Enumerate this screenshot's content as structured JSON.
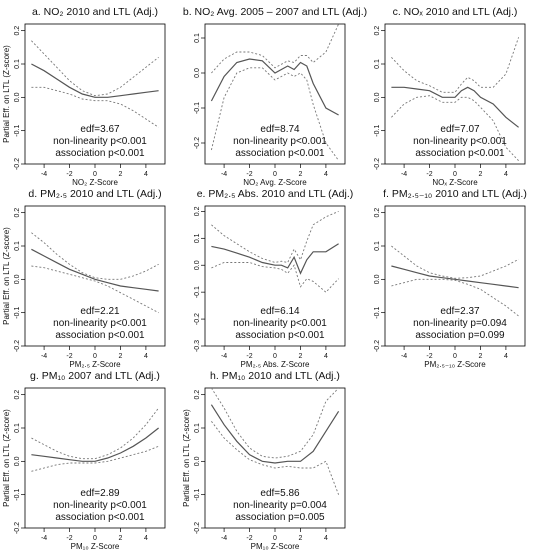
{
  "chart_data": [
    {
      "type": "line",
      "title": "a. NO₂ 2010 and LTL (Adj.)",
      "xlabel": "NO₂ Z-Score",
      "ylabel": "Partial Eff. on LTL (Z-score)",
      "xlim": [
        -5.5,
        5.5
      ],
      "ylim": [
        -0.2,
        0.22
      ],
      "xticks": [
        -4,
        -2,
        0,
        2,
        4
      ],
      "yticks": [
        -0.2,
        -0.1,
        0.0,
        0.1,
        0.2
      ],
      "stats": [
        "edf=3.67",
        "non-linearity p<0.001",
        "association p<0.001"
      ],
      "series": [
        {
          "role": "estimate",
          "x": [
            -5,
            -4,
            -3,
            -2,
            -1,
            0,
            1,
            2,
            3,
            4,
            5
          ],
          "y": [
            0.1,
            0.08,
            0.055,
            0.03,
            0.01,
            0.0,
            0.0,
            0.005,
            0.01,
            0.015,
            0.02
          ]
        },
        {
          "role": "upper",
          "x": [
            -5,
            -4,
            -3,
            -2,
            -1,
            0,
            1,
            2,
            3,
            4,
            5
          ],
          "y": [
            0.17,
            0.13,
            0.09,
            0.05,
            0.02,
            0.005,
            0.01,
            0.03,
            0.06,
            0.09,
            0.12
          ]
        },
        {
          "role": "lower",
          "x": [
            -5,
            -4,
            -3,
            -2,
            -1,
            0,
            1,
            2,
            3,
            4,
            5
          ],
          "y": [
            0.03,
            0.03,
            0.02,
            0.01,
            -0.005,
            -0.01,
            -0.01,
            -0.02,
            -0.04,
            -0.065,
            -0.09
          ]
        }
      ]
    },
    {
      "type": "line",
      "title": "b. NO₂ Avg. 2005 – 2007 and LTL (Adj.)",
      "xlabel": "NO₂ Avg. Z-Score",
      "ylabel": "",
      "xlim": [
        -5.5,
        5.5
      ],
      "ylim": [
        -0.26,
        0.14
      ],
      "xticks": [
        -4,
        -2,
        0,
        2,
        4
      ],
      "yticks": [
        -0.2,
        -0.1,
        0.0,
        0.1
      ],
      "stats": [
        "edf=8.74",
        "non-linearity p<0.001",
        "association p<0.001"
      ],
      "series": [
        {
          "role": "estimate",
          "x": [
            -5,
            -4,
            -3,
            -2,
            -1,
            0,
            1,
            1.5,
            2,
            2.5,
            3,
            4,
            5
          ],
          "y": [
            -0.08,
            -0.01,
            0.03,
            0.04,
            0.035,
            0.0,
            0.02,
            0.01,
            0.03,
            0.02,
            -0.03,
            -0.1,
            -0.12
          ]
        },
        {
          "role": "upper",
          "x": [
            -5,
            -4,
            -3,
            -2,
            -1,
            0,
            1,
            1.5,
            2,
            2.5,
            3,
            4,
            5
          ],
          "y": [
            0.0,
            0.04,
            0.06,
            0.06,
            0.05,
            0.015,
            0.035,
            0.03,
            0.05,
            0.05,
            0.03,
            0.06,
            0.14
          ]
        },
        {
          "role": "lower",
          "x": [
            -5,
            -4,
            -3,
            -2,
            -1,
            0,
            1,
            1.5,
            2,
            2.5,
            3,
            4,
            5
          ],
          "y": [
            -0.22,
            -0.07,
            0.0,
            0.015,
            0.015,
            -0.02,
            0.0,
            -0.01,
            0.0,
            -0.02,
            -0.09,
            -0.2,
            -0.25
          ]
        }
      ]
    },
    {
      "type": "line",
      "title": "c. NOₓ 2010 and LTL (Adj.)",
      "xlabel": "NOₓ Z-Score",
      "ylabel": "",
      "xlim": [
        -5.5,
        5.5
      ],
      "ylim": [
        -0.2,
        0.22
      ],
      "xticks": [
        -4,
        -2,
        0,
        2,
        4
      ],
      "yticks": [
        -0.2,
        -0.1,
        0.0,
        0.1,
        0.2
      ],
      "stats": [
        "edf=7.07",
        "non-linearity p<0.001",
        "association p<0.001"
      ],
      "series": [
        {
          "role": "estimate",
          "x": [
            -5,
            -4,
            -3,
            -2,
            -1,
            0,
            0.5,
            1,
            1.5,
            2,
            3,
            4,
            5
          ],
          "y": [
            0.03,
            0.03,
            0.025,
            0.02,
            0.0,
            0.0,
            0.02,
            0.03,
            0.02,
            0.0,
            -0.02,
            -0.06,
            -0.09
          ]
        },
        {
          "role": "upper",
          "x": [
            -5,
            -4,
            -3,
            -2,
            -1,
            0,
            0.5,
            1,
            1.5,
            2,
            3,
            4,
            5
          ],
          "y": [
            0.12,
            0.08,
            0.05,
            0.035,
            0.015,
            0.015,
            0.04,
            0.06,
            0.05,
            0.03,
            0.03,
            0.07,
            0.18
          ]
        },
        {
          "role": "lower",
          "x": [
            -5,
            -4,
            -3,
            -2,
            -1,
            0,
            0.5,
            1,
            1.5,
            2,
            3,
            4,
            5
          ],
          "y": [
            -0.06,
            -0.02,
            0.0,
            0.005,
            -0.015,
            -0.015,
            0.0,
            0.0,
            -0.01,
            -0.03,
            -0.07,
            -0.15,
            -0.19
          ]
        }
      ]
    },
    {
      "type": "line",
      "title": "d. PM₂.₅ 2010 and LTL (Adj.)",
      "xlabel": "PM₂.₅ Z-Score",
      "ylabel": "Partial Eff. on LTL (Z-score)",
      "xlim": [
        -5.5,
        5.5
      ],
      "ylim": [
        -0.2,
        0.22
      ],
      "xticks": [
        -4,
        -2,
        0,
        2,
        4
      ],
      "yticks": [
        -0.2,
        -0.1,
        0.0,
        0.1,
        0.2
      ],
      "stats": [
        "edf=2.21",
        "non-linearity p<0.001",
        "association p<0.001"
      ],
      "series": [
        {
          "role": "estimate",
          "x": [
            -5,
            -4,
            -3,
            -2,
            -1,
            0,
            1,
            2,
            3,
            4,
            5
          ],
          "y": [
            0.09,
            0.07,
            0.05,
            0.03,
            0.015,
            0.0,
            -0.01,
            -0.02,
            -0.025,
            -0.03,
            -0.035
          ]
        },
        {
          "role": "upper",
          "x": [
            -5,
            -4,
            -3,
            -2,
            -1,
            0,
            1,
            2,
            3,
            4,
            5
          ],
          "y": [
            0.14,
            0.11,
            0.075,
            0.045,
            0.02,
            0.005,
            0.0,
            0.0,
            0.01,
            0.025,
            0.045
          ]
        },
        {
          "role": "lower",
          "x": [
            -5,
            -4,
            -3,
            -2,
            -1,
            0,
            1,
            2,
            3,
            4,
            5
          ],
          "y": [
            0.04,
            0.035,
            0.025,
            0.015,
            0.005,
            -0.005,
            -0.02,
            -0.04,
            -0.06,
            -0.08,
            -0.1
          ]
        }
      ]
    },
    {
      "type": "line",
      "title": "e. PM₂.₅ Abs. 2010 and LTL (Adj.)",
      "xlabel": "PM₂.₅ Abs. Z-Score",
      "ylabel": "",
      "xlim": [
        -5.5,
        5.5
      ],
      "ylim": [
        -0.3,
        0.22
      ],
      "xticks": [
        -4,
        -2,
        0,
        2,
        4
      ],
      "yticks": [
        -0.3,
        -0.2,
        -0.1,
        0.0,
        0.1,
        0.2
      ],
      "stats": [
        "edf=6.14",
        "non-linearity p<0.001",
        "association p<0.001"
      ],
      "series": [
        {
          "role": "estimate",
          "x": [
            -5,
            -4,
            -3,
            -2,
            -1,
            0,
            0.5,
            1,
            1.5,
            2,
            2.5,
            3,
            4,
            5
          ],
          "y": [
            0.07,
            0.06,
            0.045,
            0.03,
            0.01,
            0.0,
            0.0,
            -0.01,
            0.03,
            -0.03,
            0.02,
            0.05,
            0.05,
            0.08
          ]
        },
        {
          "role": "upper",
          "x": [
            -5,
            -4,
            -3,
            -2,
            -1,
            0,
            0.5,
            1,
            1.5,
            2,
            2.5,
            3,
            4,
            5
          ],
          "y": [
            0.15,
            0.11,
            0.08,
            0.05,
            0.025,
            0.01,
            0.015,
            0.01,
            0.06,
            0.02,
            0.09,
            0.15,
            0.18,
            0.2
          ]
        },
        {
          "role": "lower",
          "x": [
            -5,
            -4,
            -3,
            -2,
            -1,
            0,
            0.5,
            1,
            1.5,
            2,
            2.5,
            3,
            4,
            5
          ],
          "y": [
            -0.01,
            0.01,
            0.01,
            0.01,
            -0.005,
            -0.01,
            -0.015,
            -0.03,
            0.0,
            -0.08,
            -0.05,
            -0.06,
            -0.1,
            -0.05
          ]
        }
      ]
    },
    {
      "type": "line",
      "title": "f. PM₂.₅₋₁₀ 2010 and LTL (Adj.)",
      "xlabel": "PM₂.₅₋₁₀ Z-Score",
      "ylabel": "",
      "xlim": [
        -5.5,
        5.5
      ],
      "ylim": [
        -0.2,
        0.22
      ],
      "xticks": [
        -4,
        -2,
        0,
        2,
        4
      ],
      "yticks": [
        -0.2,
        -0.1,
        0.0,
        0.1,
        0.2
      ],
      "stats": [
        "edf=2.37",
        "non-linearity p=0.094",
        "association p=0.099"
      ],
      "series": [
        {
          "role": "estimate",
          "x": [
            -5,
            -4,
            -3,
            -2,
            -1,
            0,
            1,
            2,
            3,
            4,
            5
          ],
          "y": [
            0.04,
            0.03,
            0.02,
            0.01,
            0.005,
            0.0,
            -0.005,
            -0.01,
            -0.015,
            -0.02,
            -0.025
          ]
        },
        {
          "role": "upper",
          "x": [
            -5,
            -4,
            -3,
            -2,
            -1,
            0,
            1,
            2,
            3,
            4,
            5
          ],
          "y": [
            0.1,
            0.07,
            0.04,
            0.02,
            0.01,
            0.003,
            0.005,
            0.01,
            0.025,
            0.04,
            0.06
          ]
        },
        {
          "role": "lower",
          "x": [
            -5,
            -4,
            -3,
            -2,
            -1,
            0,
            1,
            2,
            3,
            4,
            5
          ],
          "y": [
            -0.02,
            -0.01,
            0.0,
            0.0,
            0.0,
            -0.003,
            -0.015,
            -0.03,
            -0.055,
            -0.08,
            -0.11
          ]
        }
      ]
    },
    {
      "type": "line",
      "title": "g. PM₁₀ 2007 and LTL (Adj.)",
      "xlabel": "PM₁₀ Z-Score",
      "ylabel": "Partial Eff. on LTL (Z-score)",
      "xlim": [
        -5.5,
        5.5
      ],
      "ylim": [
        -0.2,
        0.22
      ],
      "xticks": [
        -4,
        -2,
        0,
        2,
        4
      ],
      "yticks": [
        -0.2,
        -0.1,
        0.0,
        0.1,
        0.2
      ],
      "stats": [
        "edf=2.89",
        "non-linearity p<0.001",
        "association p<0.001"
      ],
      "series": [
        {
          "role": "estimate",
          "x": [
            -5,
            -4,
            -3,
            -2,
            -1,
            0,
            1,
            2,
            3,
            4,
            5
          ],
          "y": [
            0.02,
            0.015,
            0.01,
            0.005,
            0.0,
            0.0,
            0.01,
            0.025,
            0.045,
            0.07,
            0.1
          ]
        },
        {
          "role": "upper",
          "x": [
            -5,
            -4,
            -3,
            -2,
            -1,
            0,
            1,
            2,
            3,
            4,
            5
          ],
          "y": [
            0.07,
            0.05,
            0.03,
            0.015,
            0.008,
            0.008,
            0.02,
            0.04,
            0.07,
            0.11,
            0.16
          ]
        },
        {
          "role": "lower",
          "x": [
            -5,
            -4,
            -3,
            -2,
            -1,
            0,
            1,
            2,
            3,
            4,
            5
          ],
          "y": [
            -0.03,
            -0.02,
            -0.01,
            -0.005,
            -0.005,
            -0.005,
            0.0,
            0.01,
            0.02,
            0.03,
            0.045
          ]
        }
      ]
    },
    {
      "type": "line",
      "title": "h. PM₁₀ 2010 and LTL (Adj.)",
      "xlabel": "PM₁₀ Z-Score",
      "ylabel": "Partial Eff. on LTL (Z-score)",
      "xlim": [
        -5.5,
        5.5
      ],
      "ylim": [
        -0.2,
        0.22
      ],
      "xticks": [
        -4,
        -2,
        0,
        2,
        4
      ],
      "yticks": [
        -0.2,
        -0.1,
        0.0,
        0.1,
        0.2
      ],
      "stats": [
        "edf=5.86",
        "non-linearity p=0.004",
        "association p=0.005"
      ],
      "series": [
        {
          "role": "estimate",
          "x": [
            -5,
            -4,
            -3,
            -2,
            -1,
            0,
            1,
            2,
            3,
            4,
            5
          ],
          "y": [
            0.17,
            0.11,
            0.06,
            0.02,
            0.0,
            -0.005,
            0.0,
            0.0,
            0.03,
            0.09,
            0.15
          ]
        },
        {
          "role": "upper",
          "x": [
            -5,
            -4,
            -3,
            -2,
            -1,
            0,
            1,
            2,
            3,
            4,
            5
          ],
          "y": [
            0.22,
            0.16,
            0.09,
            0.04,
            0.015,
            0.01,
            0.015,
            0.03,
            0.08,
            0.18,
            0.22
          ]
        },
        {
          "role": "lower",
          "x": [
            -5,
            -4,
            -3,
            -2,
            -1,
            0,
            1,
            2,
            3,
            4,
            5
          ],
          "y": [
            0.12,
            0.07,
            0.035,
            0.005,
            -0.01,
            -0.02,
            -0.015,
            -0.02,
            -0.02,
            0.0,
            -0.1
          ]
        }
      ]
    }
  ]
}
